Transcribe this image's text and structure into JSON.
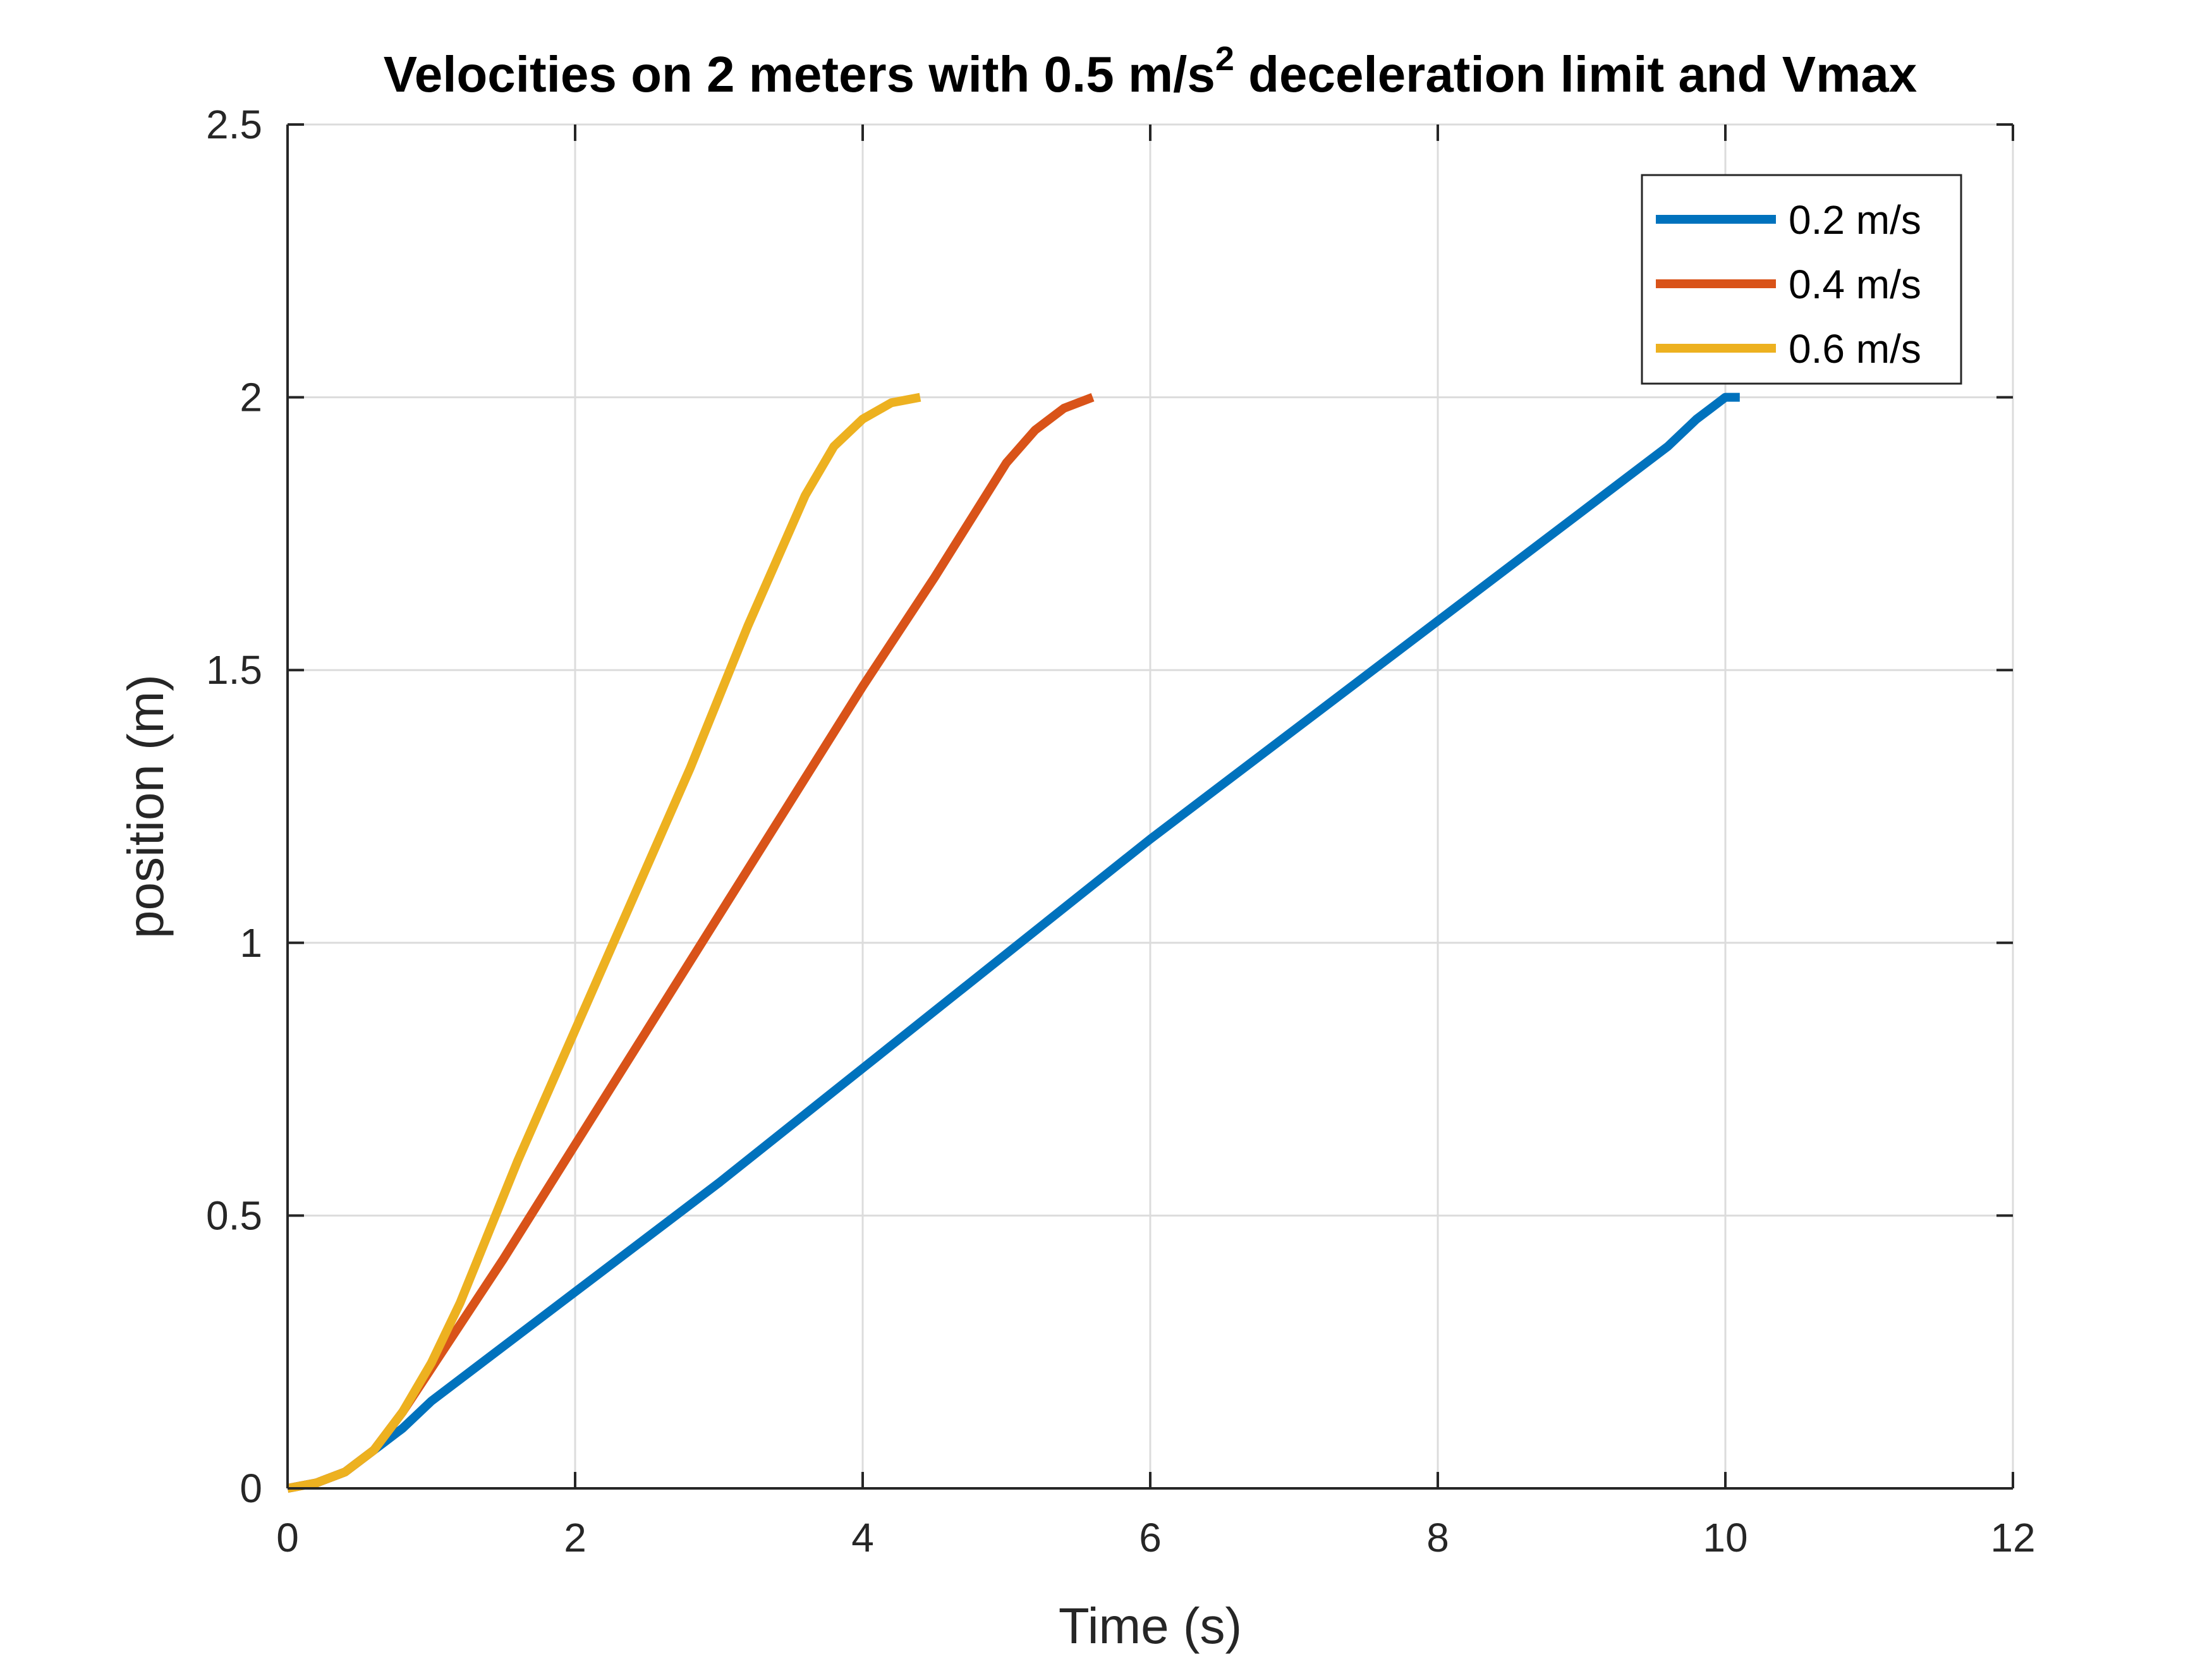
{
  "chart_data": {
    "type": "line",
    "title": {
      "main": "Velocities on 2 meters with 0.5 m/s",
      "superscript": "2",
      "rest": " deceleration limit and Vmax"
    },
    "xlabel": "Time (s)",
    "ylabel": "position (m)",
    "xlim": [
      0,
      12
    ],
    "ylim": [
      0,
      2.5
    ],
    "xticks": [
      0,
      2,
      4,
      6,
      8,
      10,
      12
    ],
    "yticks": [
      0,
      0.5,
      1,
      1.5,
      2,
      2.5
    ],
    "xtick_labels": [
      "0",
      "2",
      "4",
      "6",
      "8",
      "10",
      "12"
    ],
    "ytick_labels": [
      "0",
      "0.5",
      "1",
      "1.5",
      "2",
      "2.5"
    ],
    "grid": true,
    "legend_position": "top-right",
    "series": [
      {
        "name": "0.2 m/s",
        "color": "#0072BD",
        "x": [
          0.0,
          0.2,
          0.4,
          0.6,
          0.8,
          1.0,
          2.0,
          3.0,
          4.0,
          5.0,
          6.0,
          7.0,
          8.0,
          9.0,
          9.6,
          9.8,
          9.9,
          10.0,
          10.1
        ],
        "y": [
          0.0,
          0.01,
          0.03,
          0.07,
          0.11,
          0.16,
          0.36,
          0.56,
          0.77,
          0.98,
          1.19,
          1.39,
          1.59,
          1.79,
          1.91,
          1.96,
          1.98,
          2.0,
          2.0
        ]
      },
      {
        "name": "0.4 m/s",
        "color": "#D95319",
        "x": [
          0.0,
          0.2,
          0.4,
          0.6,
          0.8,
          1.0,
          1.2,
          1.5,
          2.0,
          2.5,
          3.0,
          3.5,
          4.0,
          4.5,
          5.0,
          5.2,
          5.4,
          5.5,
          5.6
        ],
        "y": [
          0.0,
          0.01,
          0.03,
          0.07,
          0.14,
          0.22,
          0.3,
          0.42,
          0.63,
          0.84,
          1.05,
          1.26,
          1.47,
          1.67,
          1.88,
          1.94,
          1.98,
          1.99,
          2.0
        ]
      },
      {
        "name": "0.6 m/s",
        "color": "#EDB120",
        "x": [
          0.0,
          0.2,
          0.4,
          0.6,
          0.8,
          1.0,
          1.2,
          1.4,
          1.6,
          2.0,
          2.4,
          2.8,
          3.2,
          3.6,
          3.8,
          4.0,
          4.2,
          4.4
        ],
        "y": [
          0.0,
          0.01,
          0.03,
          0.07,
          0.14,
          0.23,
          0.34,
          0.47,
          0.6,
          0.84,
          1.08,
          1.32,
          1.58,
          1.82,
          1.91,
          1.96,
          1.99,
          2.0
        ]
      }
    ]
  }
}
